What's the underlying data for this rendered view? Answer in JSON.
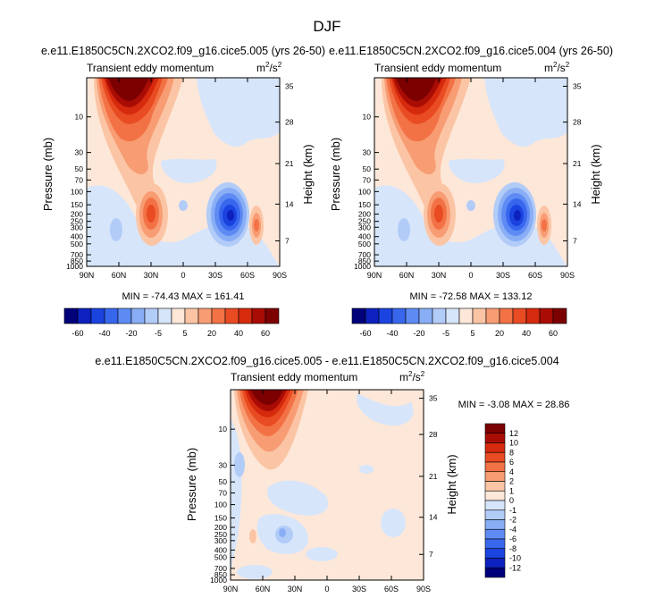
{
  "figure": {
    "title": "DJF"
  },
  "chart_data": [
    {
      "type": "heatmap",
      "title": "e.e11.E1850C5CN.2XCO2.f09_g16.cice5.005 (yrs 26-50)",
      "subtitle": "Transient eddy momentum",
      "units": {
        "base": "m",
        "sup1": "2",
        "mid": "/s",
        "sup2": "2"
      },
      "xlabel": "",
      "ylabel": "Pressure (mb)",
      "y2label": "Height (km)",
      "x_ticks": [
        "90N",
        "60N",
        "30N",
        "0",
        "30S",
        "60S",
        "90S"
      ],
      "y_ticks": [
        "10",
        "30",
        "50",
        "70",
        "100",
        "150",
        "200",
        "250",
        "300",
        "400",
        "500",
        "700",
        "850",
        "1000"
      ],
      "y2_ticks": [
        "35",
        "28",
        "21",
        "14",
        "7"
      ],
      "stats": "MIN = -74.43   MAX = 161.41",
      "colorbar": {
        "orientation": "horizontal",
        "labels": [
          "-60",
          "-40",
          "-20",
          "-5",
          "5",
          "20",
          "40",
          "60"
        ]
      }
    },
    {
      "type": "heatmap",
      "title": "e.e11.E1850C5CN.2XCO2.f09_g16.cice5.004 (yrs 26-50)",
      "subtitle": "Transient eddy momentum",
      "units": {
        "base": "m",
        "sup1": "2",
        "mid": "/s",
        "sup2": "2"
      },
      "xlabel": "",
      "ylabel": "Pressure (mb)",
      "y2label": "Height (km)",
      "x_ticks": [
        "90N",
        "60N",
        "30N",
        "0",
        "30S",
        "60S",
        "90S"
      ],
      "y_ticks": [
        "10",
        "30",
        "50",
        "70",
        "100",
        "150",
        "200",
        "250",
        "300",
        "400",
        "500",
        "700",
        "850",
        "1000"
      ],
      "y2_ticks": [
        "35",
        "28",
        "21",
        "14",
        "7"
      ],
      "stats": "MIN = -72.58   MAX = 133.12",
      "colorbar": {
        "orientation": "horizontal",
        "labels": [
          "-60",
          "-40",
          "-20",
          "-5",
          "5",
          "20",
          "40",
          "60"
        ]
      }
    },
    {
      "type": "heatmap",
      "title": "e.e11.E1850C5CN.2XCO2.f09_g16.cice5.005 - e.e11.E1850C5CN.2XCO2.f09_g16.cice5.004",
      "subtitle": "Transient eddy momentum",
      "units": {
        "base": "m",
        "sup1": "2",
        "mid": "/s",
        "sup2": "2"
      },
      "xlabel": "",
      "ylabel": "Pressure (mb)",
      "y2label": "Height (km)",
      "x_ticks": [
        "90N",
        "60N",
        "30N",
        "0",
        "30S",
        "60S",
        "90S"
      ],
      "y_ticks": [
        "10",
        "30",
        "50",
        "70",
        "100",
        "150",
        "200",
        "250",
        "300",
        "400",
        "500",
        "700",
        "850",
        "1000"
      ],
      "y2_ticks": [
        "35",
        "28",
        "21",
        "14",
        "7"
      ],
      "stats": "MIN = -3.08   MAX = 28.86",
      "colorbar": {
        "orientation": "vertical",
        "labels": [
          "12",
          "10",
          "8",
          "6",
          "4",
          "2",
          "1",
          "0",
          "-1",
          "-2",
          "-4",
          "-6",
          "-8",
          "-10",
          "-12"
        ]
      }
    }
  ],
  "palette": [
    "#00007a",
    "#0c21bd",
    "#1a43e0",
    "#3867ee",
    "#5e8bf3",
    "#89aef6",
    "#b2ccf8",
    "#d7e5fa",
    "#fde7d8",
    "#fbc5a5",
    "#f89c73",
    "#f27246",
    "#e94b22",
    "#d52a0d",
    "#a90c04",
    "#7c0000"
  ]
}
